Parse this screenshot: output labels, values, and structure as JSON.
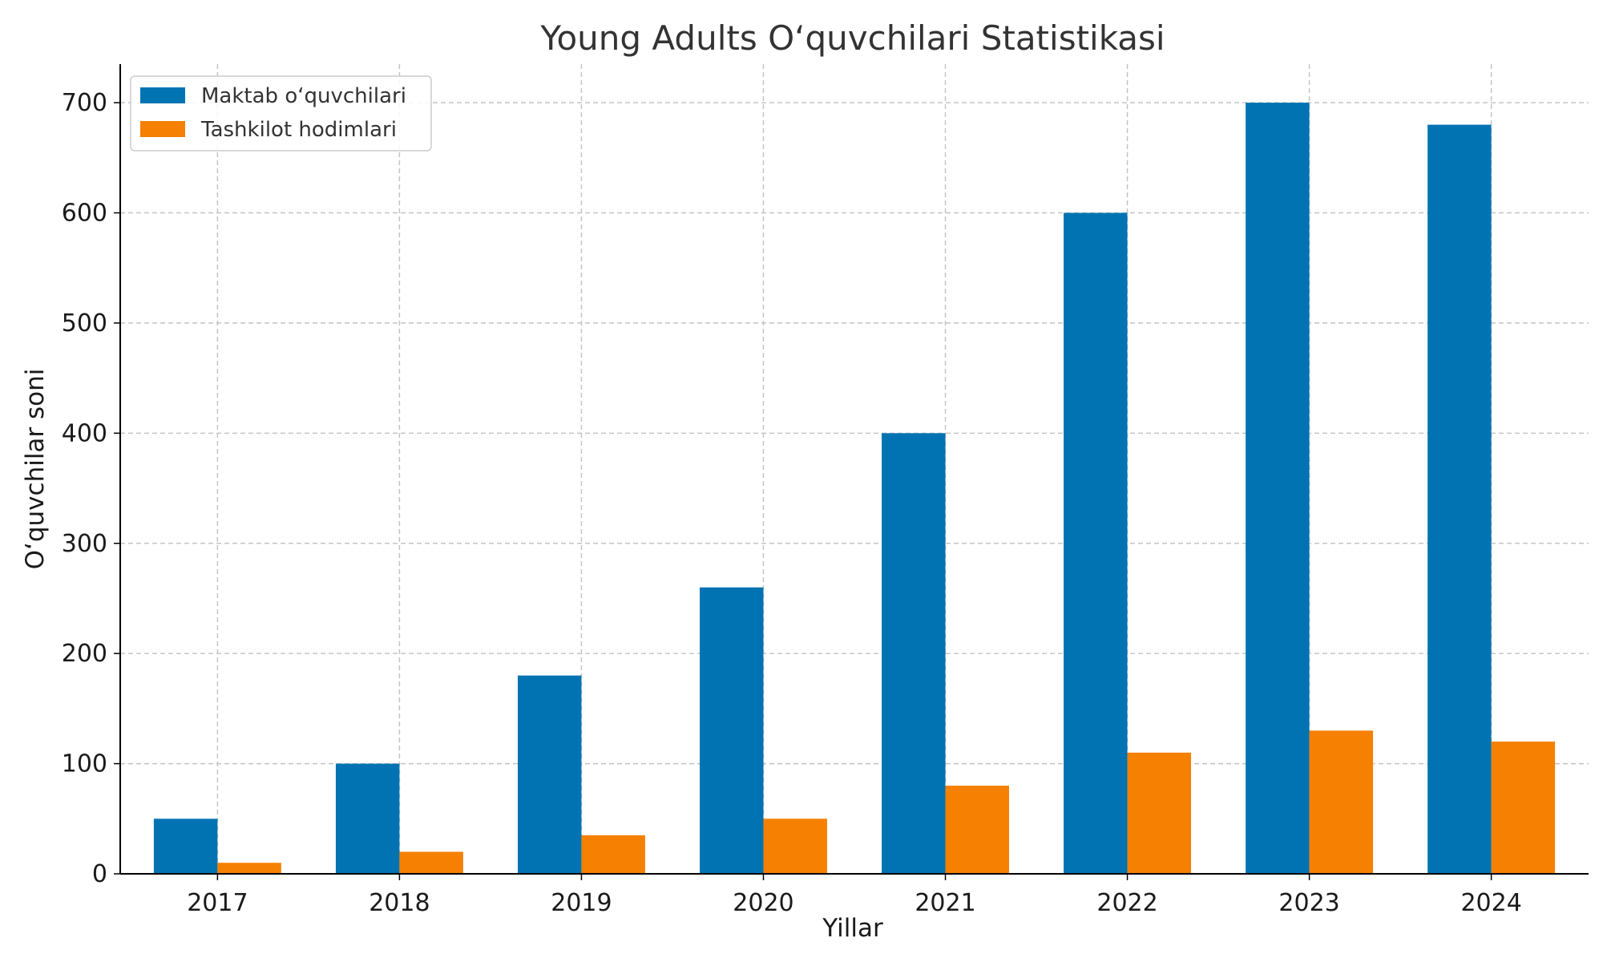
{
  "chart_data": {
    "type": "bar",
    "title": "Young Adults O‘quvchilari Statistikasi",
    "xlabel": "Yillar",
    "ylabel": "O‘quvchilar soni",
    "categories": [
      "2017",
      "2018",
      "2019",
      "2020",
      "2021",
      "2022",
      "2023",
      "2024"
    ],
    "series": [
      {
        "name": "Maktab o‘quvchilari",
        "color": "#0173b2",
        "values": [
          50,
          100,
          180,
          260,
          400,
          600,
          700,
          680
        ]
      },
      {
        "name": "Tashkilot hodimlari",
        "color": "#f58002",
        "values": [
          10,
          20,
          35,
          50,
          80,
          110,
          130,
          120
        ]
      }
    ],
    "ylim": [
      0,
      735
    ],
    "yticks": [
      0,
      100,
      200,
      300,
      400,
      500,
      600,
      700
    ],
    "grid": true,
    "legend_position": "top-left"
  }
}
